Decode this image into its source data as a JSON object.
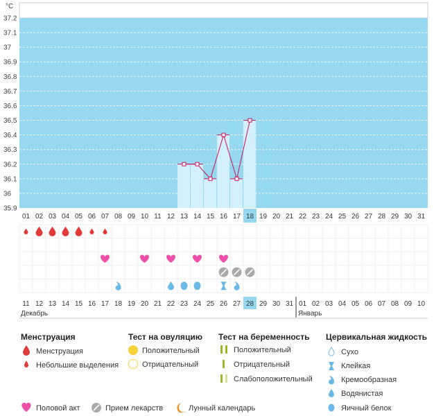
{
  "chart_data": {
    "type": "line",
    "title": "",
    "ylabel": "°C",
    "ylim": [
      35.9,
      37.2
    ],
    "yticks": [
      "37.2",
      "37.1",
      "37",
      "36.9",
      "36.8",
      "36.7",
      "36.6",
      "36.5",
      "36.4",
      "36.3",
      "36.2",
      "36.1",
      "36",
      "35.9"
    ],
    "cycle_days": [
      "01",
      "02",
      "03",
      "04",
      "05",
      "06",
      "07",
      "08",
      "09",
      "10",
      "11",
      "12",
      "13",
      "14",
      "15",
      "16",
      "17",
      "18",
      "19",
      "20",
      "21",
      "22",
      "23",
      "24",
      "25",
      "26",
      "27",
      "28",
      "29",
      "30",
      "31"
    ],
    "current_cycle_day": "18",
    "series": [
      {
        "points": [
          {
            "cycle_day": 13,
            "value": 36.2
          },
          {
            "cycle_day": 14,
            "value": 36.2
          },
          {
            "cycle_day": 15,
            "value": 36.1
          },
          {
            "cycle_day": 16,
            "value": 36.4
          },
          {
            "cycle_day": 17,
            "value": 36.1
          },
          {
            "cycle_day": 18,
            "value": 36.5
          }
        ]
      }
    ],
    "calendar_dates": [
      "11",
      "12",
      "13",
      "14",
      "15",
      "16",
      "17",
      "18",
      "19",
      "20",
      "21",
      "22",
      "23",
      "24",
      "25",
      "26",
      "27",
      "28",
      "29",
      "30",
      "31",
      "01",
      "02",
      "03",
      "04",
      "05",
      "06",
      "07",
      "08",
      "09",
      "10"
    ],
    "weekend_dates_index": [
      2,
      3,
      9,
      10,
      16,
      23,
      24,
      30
    ],
    "today_index": 17,
    "month_labels": [
      {
        "text": "Декабрь",
        "start_index": 0
      },
      {
        "text": "Январь",
        "start_index": 21
      }
    ],
    "marker_rows": {
      "menstruation_large": [
        1,
        2,
        3,
        4
      ],
      "menstruation_small": [
        0,
        5,
        6
      ],
      "intercourse": [
        6,
        9,
        11,
        13,
        15
      ],
      "medication": [
        15,
        16,
        17
      ],
      "cervical_sticky": [
        15
      ],
      "cervical_creamy": [
        7,
        16
      ],
      "cervical_watery": [
        11
      ],
      "cervical_eggwhite": [
        12,
        13
      ]
    }
  },
  "colors": {
    "chart_bg": "#95d8f0",
    "bar_fill": "#d4f0fc",
    "line": "#cc1155",
    "menstruation": "#e03a3a",
    "heart": "#ec4fa8",
    "pill": "#aaaaaa",
    "cervical": "#6ab8e6",
    "positive_test": "#f7d23a",
    "pregnancy_test": "#9bb82a",
    "moon": "#f08a1a",
    "today_bg": "#95d8f0",
    "weekend_text": "#cc1133"
  },
  "legend": {
    "menstruation": {
      "title": "Менструация",
      "items": [
        "Менструация",
        "Небольшие выделения"
      ]
    },
    "ovulation_test": {
      "title": "Тест на овуляцию",
      "items": [
        "Положительный",
        "Отрицательный"
      ]
    },
    "pregnancy_test": {
      "title": "Тест на беременность",
      "items": [
        "Положительный",
        "Отрицательный",
        "Слабоположительный"
      ]
    },
    "cervical_fluid": {
      "title": "Цервикальная жидкость",
      "items": [
        "Сухо",
        "Клейкая",
        "Кремообразная",
        "Водянистая",
        "Яичный белок"
      ]
    },
    "bottom": [
      "Половой акт",
      "Прием лекарств",
      "Лунный календарь"
    ]
  }
}
